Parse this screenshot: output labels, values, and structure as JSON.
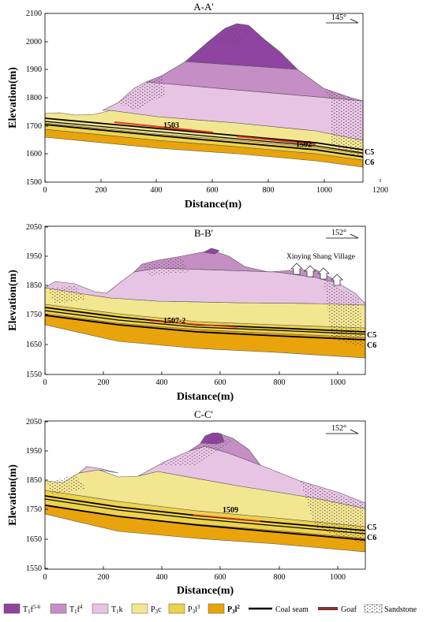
{
  "colors": {
    "layer_t1f56": "#8e44a0",
    "layer_t1f4": "#c58ec5",
    "layer_t1k": "#e8c4e4",
    "layer_p3c": "#f3e690",
    "layer_p3l3": "#eed24a",
    "layer_p3l2": "#e8a40a",
    "coal_seam": "#000000",
    "goaf": "#e03a1e"
  },
  "sections": [
    {
      "title": "A-A'",
      "orientation": "145°",
      "y_axis_label": "Elevation(m)",
      "x_axis_label": "Distance(m)",
      "x_ticks": [
        "0",
        "200",
        "400",
        "600",
        "800",
        "1000",
        "1200"
      ],
      "y_ticks": [
        "1500",
        "1600",
        "1700",
        "1800",
        "1900",
        "2000",
        "2100"
      ],
      "seam_labels": [
        "C5",
        "C6"
      ],
      "panel_labels": [
        "1503",
        "1502"
      ]
    },
    {
      "title": "B-B'",
      "orientation": "152°",
      "y_axis_label": "Elevation(m)",
      "x_axis_label": "Distance(m)",
      "x_ticks": [
        "0",
        "200",
        "400",
        "600",
        "800",
        "1000"
      ],
      "y_ticks": [
        "1550",
        "1650",
        "1750",
        "1850",
        "1950",
        "2050"
      ],
      "seam_labels": [
        "C5",
        "C6"
      ],
      "panel_labels": [
        "1507-2"
      ],
      "village_label": "Xinying Shang Village"
    },
    {
      "title": "C-C'",
      "orientation": "152°",
      "y_axis_label": "Elevation(m)",
      "x_axis_label": "Distance(m)",
      "x_ticks": [
        "0",
        "200",
        "400",
        "600",
        "800",
        "1000"
      ],
      "y_ticks": [
        "1550",
        "1650",
        "1750",
        "1850",
        "1950",
        "2050"
      ],
      "seam_labels": [
        "C5",
        "C6"
      ],
      "panel_labels": [
        "1509"
      ]
    }
  ],
  "legend": [
    {
      "key": "t1f56",
      "base": "T",
      "sub": "1",
      "mid": "f",
      "sup": "5-6"
    },
    {
      "key": "t1f4",
      "base": "T",
      "sub": "1",
      "mid": "f",
      "sup": "4"
    },
    {
      "key": "t1k",
      "base": "T",
      "sub": "1",
      "mid": "k",
      "sup": ""
    },
    {
      "key": "p3c",
      "base": "P",
      "sub": "3",
      "mid": "c",
      "sup": ""
    },
    {
      "key": "p3l3",
      "base": "P",
      "sub": "3",
      "mid": "l",
      "sup": "3"
    },
    {
      "key": "p3l2",
      "base": "P",
      "sub": "3",
      "mid": "l",
      "sup": "2"
    },
    {
      "key": "coal",
      "text": "Coal seam"
    },
    {
      "key": "goaf",
      "text": "Goaf"
    },
    {
      "key": "sandstone",
      "text": "Sandstone"
    }
  ]
}
